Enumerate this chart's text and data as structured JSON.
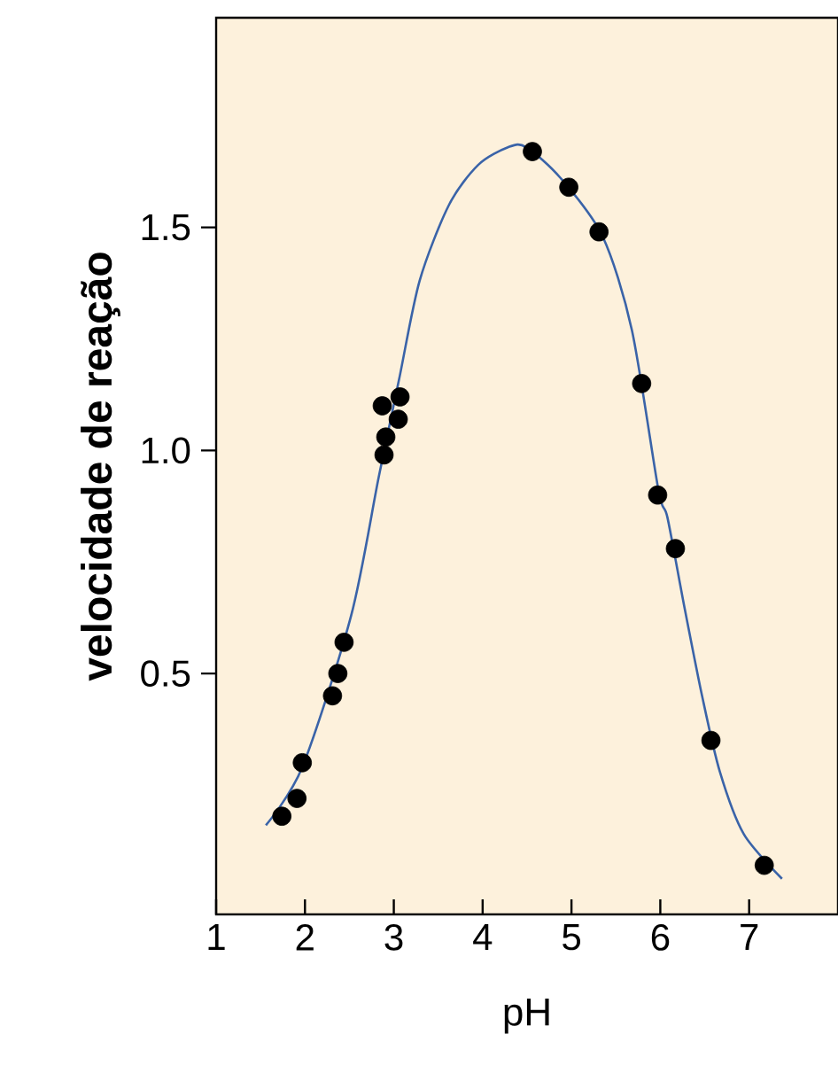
{
  "chart_data": {
    "type": "scatter",
    "xlabel": "pH",
    "ylabel": "velocidade de reação",
    "xlim": [
      1,
      8
    ],
    "ylim": [
      -0.04,
      1.97
    ],
    "xticks": [
      1,
      2,
      3,
      4,
      5,
      6,
      7
    ],
    "yticks": [
      0.5,
      {
        "value": 1,
        "label": "1.0"
      },
      1.5
    ],
    "series": [
      {
        "type": "line",
        "color": "#3a63a8",
        "marker": "none",
        "x": [
          1.56,
          1.97,
          2.52,
          2.83,
          3.06,
          3.29,
          3.62,
          3.95,
          4.29,
          4.49,
          4.88,
          5.35,
          5.68,
          5.98,
          6.08,
          6.27,
          6.47,
          6.67,
          6.94,
          7.37
        ],
        "values": [
          0.16,
          0.29,
          0.63,
          0.94,
          1.16,
          1.38,
          1.55,
          1.64,
          1.68,
          1.68,
          1.61,
          1.48,
          1.27,
          0.91,
          0.85,
          0.65,
          0.45,
          0.28,
          0.14,
          0.04
        ]
      },
      {
        "color": "#000000",
        "marker": "circle",
        "x": [
          1.74,
          1.91,
          1.97,
          2.31,
          2.37,
          2.44,
          2.89,
          2.91,
          2.87,
          3.05,
          3.07,
          4.56,
          4.97,
          5.31,
          5.79,
          5.97,
          6.17,
          6.57,
          7.17
        ],
        "values": [
          0.18,
          0.22,
          0.3,
          0.45,
          0.5,
          0.57,
          0.99,
          1.03,
          1.1,
          1.07,
          1.12,
          1.67,
          1.59,
          1.49,
          1.15,
          0.9,
          0.78,
          0.35,
          0.07
        ]
      }
    ]
  }
}
